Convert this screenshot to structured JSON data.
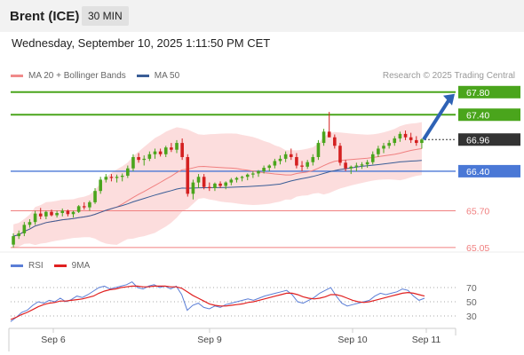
{
  "header": {
    "title": "Brent (ICE)",
    "timeframe": "30 MIN",
    "datetime": "Wednesday, September 10, 2025 1:11:50 PM CET"
  },
  "legend": {
    "items": [
      {
        "label": "MA 20 + Bollinger Bands",
        "color": "#f08a8a"
      },
      {
        "label": "MA 50",
        "color": "#3a5d96"
      }
    ],
    "credit": "Research © 2025 Trading Central"
  },
  "rsi_legend": {
    "items": [
      {
        "label": "RSI",
        "color": "#5b7ed6"
      },
      {
        "label": "9MA",
        "color": "#e02020"
      }
    ]
  },
  "chart_data": {
    "type": "candlestick",
    "price_range": [
      65.0,
      67.85
    ],
    "x_ticks": [
      "Sep 6",
      "Sep 9",
      "Sep 10",
      "Sep 11"
    ],
    "levels": [
      {
        "label": "67.80",
        "value": 67.8,
        "kind": "resistance"
      },
      {
        "label": "67.40",
        "value": 67.4,
        "kind": "resistance"
      },
      {
        "label": "66.96",
        "value": 66.96,
        "kind": "last"
      },
      {
        "label": "66.40",
        "value": 66.4,
        "kind": "pivot"
      },
      {
        "label": "65.70",
        "value": 65.7,
        "kind": "support"
      },
      {
        "label": "65.05",
        "value": 65.05,
        "kind": "support"
      }
    ],
    "colors": {
      "resistance": "#4aa51c",
      "pivot": "#4a78d6",
      "support": "#f08080",
      "last": "#333333",
      "up": "#4aa51c",
      "down": "#d42020",
      "band": "#fbd5d5",
      "ma20": "#f08080",
      "ma50": "#3a5d96",
      "arrow": "#2e62b5"
    },
    "candles": [
      [
        65.1,
        65.3,
        65.05,
        65.25
      ],
      [
        65.25,
        65.35,
        65.2,
        65.3
      ],
      [
        65.3,
        65.5,
        65.25,
        65.45
      ],
      [
        65.45,
        65.55,
        65.4,
        65.5
      ],
      [
        65.5,
        65.7,
        65.45,
        65.65
      ],
      [
        65.65,
        65.75,
        65.55,
        65.6
      ],
      [
        65.6,
        65.7,
        65.55,
        65.68
      ],
      [
        65.68,
        65.72,
        65.6,
        65.62
      ],
      [
        65.62,
        65.7,
        65.58,
        65.66
      ],
      [
        65.66,
        65.74,
        65.6,
        65.7
      ],
      [
        65.7,
        65.72,
        65.6,
        65.64
      ],
      [
        65.64,
        65.7,
        65.58,
        65.68
      ],
      [
        65.68,
        65.8,
        65.66,
        65.78
      ],
      [
        65.78,
        65.85,
        65.72,
        65.76
      ],
      [
        65.76,
        65.88,
        65.7,
        65.85
      ],
      [
        65.85,
        66.1,
        65.82,
        66.05
      ],
      [
        66.05,
        66.3,
        66.0,
        66.25
      ],
      [
        66.25,
        66.35,
        66.2,
        66.3
      ],
      [
        66.3,
        66.35,
        66.22,
        66.28
      ],
      [
        66.28,
        66.34,
        66.2,
        66.3
      ],
      [
        66.3,
        66.36,
        66.22,
        66.32
      ],
      [
        66.32,
        66.5,
        66.28,
        66.45
      ],
      [
        66.45,
        66.7,
        66.4,
        66.65
      ],
      [
        66.65,
        66.72,
        66.55,
        66.6
      ],
      [
        66.6,
        66.68,
        66.5,
        66.62
      ],
      [
        66.62,
        66.75,
        66.58,
        66.7
      ],
      [
        66.7,
        66.8,
        66.62,
        66.75
      ],
      [
        66.75,
        66.8,
        66.66,
        66.7
      ],
      [
        66.7,
        66.85,
        66.65,
        66.82
      ],
      [
        66.82,
        66.9,
        66.74,
        66.78
      ],
      [
        66.78,
        66.95,
        66.72,
        66.9
      ],
      [
        66.9,
        66.98,
        66.6,
        66.65
      ],
      [
        66.65,
        66.7,
        65.95,
        66.0
      ],
      [
        66.0,
        66.25,
        65.9,
        66.2
      ],
      [
        66.2,
        66.35,
        66.1,
        66.3
      ],
      [
        66.3,
        66.35,
        66.08,
        66.12
      ],
      [
        66.12,
        66.2,
        66.05,
        66.1
      ],
      [
        66.1,
        66.2,
        66.05,
        66.18
      ],
      [
        66.18,
        66.22,
        66.1,
        66.14
      ],
      [
        66.14,
        66.22,
        66.08,
        66.2
      ],
      [
        66.2,
        66.28,
        66.15,
        66.25
      ],
      [
        66.25,
        66.3,
        66.2,
        66.28
      ],
      [
        66.28,
        66.32,
        66.22,
        66.3
      ],
      [
        66.3,
        66.36,
        66.24,
        66.34
      ],
      [
        66.34,
        66.4,
        66.28,
        66.36
      ],
      [
        66.36,
        66.42,
        66.3,
        66.4
      ],
      [
        66.4,
        66.5,
        66.36,
        66.46
      ],
      [
        66.46,
        66.52,
        66.4,
        66.5
      ],
      [
        66.5,
        66.62,
        66.45,
        66.58
      ],
      [
        66.58,
        66.68,
        66.52,
        66.62
      ],
      [
        66.62,
        66.75,
        66.56,
        66.7
      ],
      [
        66.7,
        66.8,
        66.6,
        66.65
      ],
      [
        66.65,
        66.72,
        66.45,
        66.5
      ],
      [
        66.5,
        66.58,
        66.4,
        66.48
      ],
      [
        66.48,
        66.6,
        66.44,
        66.56
      ],
      [
        66.56,
        66.7,
        66.5,
        66.65
      ],
      [
        66.65,
        66.95,
        66.6,
        66.9
      ],
      [
        66.9,
        67.15,
        66.85,
        67.1
      ],
      [
        67.1,
        67.45,
        67.0,
        67.0
      ],
      [
        67.0,
        67.05,
        66.8,
        66.85
      ],
      [
        66.85,
        66.9,
        66.5,
        66.55
      ],
      [
        66.55,
        66.6,
        66.4,
        66.45
      ],
      [
        66.45,
        66.5,
        66.35,
        66.48
      ],
      [
        66.48,
        66.55,
        66.4,
        66.5
      ],
      [
        66.5,
        66.56,
        66.44,
        66.52
      ],
      [
        66.52,
        66.6,
        66.46,
        66.56
      ],
      [
        66.56,
        66.75,
        66.52,
        66.7
      ],
      [
        66.7,
        66.85,
        66.65,
        66.8
      ],
      [
        66.8,
        66.9,
        66.72,
        66.85
      ],
      [
        66.85,
        66.95,
        66.8,
        66.9
      ],
      [
        66.9,
        67.02,
        66.85,
        66.98
      ],
      [
        66.98,
        67.1,
        66.92,
        67.06
      ],
      [
        67.06,
        67.12,
        66.95,
        67.0
      ],
      [
        67.0,
        67.08,
        66.9,
        66.95
      ],
      [
        66.95,
        67.02,
        66.85,
        66.9
      ],
      [
        66.9,
        66.98,
        66.8,
        66.96
      ]
    ],
    "target_arrow": {
      "from": 66.96,
      "to": 67.8
    },
    "rsi": {
      "levels": [
        70,
        50,
        30
      ],
      "range": [
        15,
        85
      ],
      "rsi_values": [
        22,
        28,
        35,
        38,
        45,
        50,
        48,
        52,
        50,
        55,
        50,
        53,
        58,
        56,
        60,
        65,
        70,
        72,
        68,
        70,
        72,
        74,
        78,
        70,
        68,
        72,
        74,
        70,
        72,
        68,
        72,
        60,
        38,
        45,
        48,
        42,
        40,
        44,
        42,
        46,
        48,
        50,
        52,
        54,
        52,
        55,
        58,
        60,
        62,
        64,
        66,
        60,
        50,
        48,
        52,
        56,
        62,
        66,
        70,
        58,
        48,
        44,
        46,
        48,
        50,
        52,
        58,
        62,
        60,
        62,
        64,
        68,
        66,
        58,
        52,
        55
      ],
      "ma_values": [
        25,
        28,
        32,
        35,
        39,
        43,
        46,
        48,
        49,
        51,
        51,
        52,
        53,
        54,
        56,
        58,
        62,
        65,
        67,
        68,
        70,
        71,
        72,
        72,
        71,
        71,
        72,
        72,
        72,
        71,
        71,
        69,
        64,
        59,
        55,
        51,
        47,
        45,
        44,
        44,
        45,
        46,
        47,
        49,
        50,
        52,
        54,
        56,
        58,
        60,
        62,
        62,
        60,
        57,
        55,
        54,
        55,
        57,
        60,
        60,
        58,
        55,
        52,
        50,
        49,
        50,
        52,
        54,
        56,
        58,
        60,
        62,
        63,
        62,
        60,
        58
      ]
    }
  }
}
